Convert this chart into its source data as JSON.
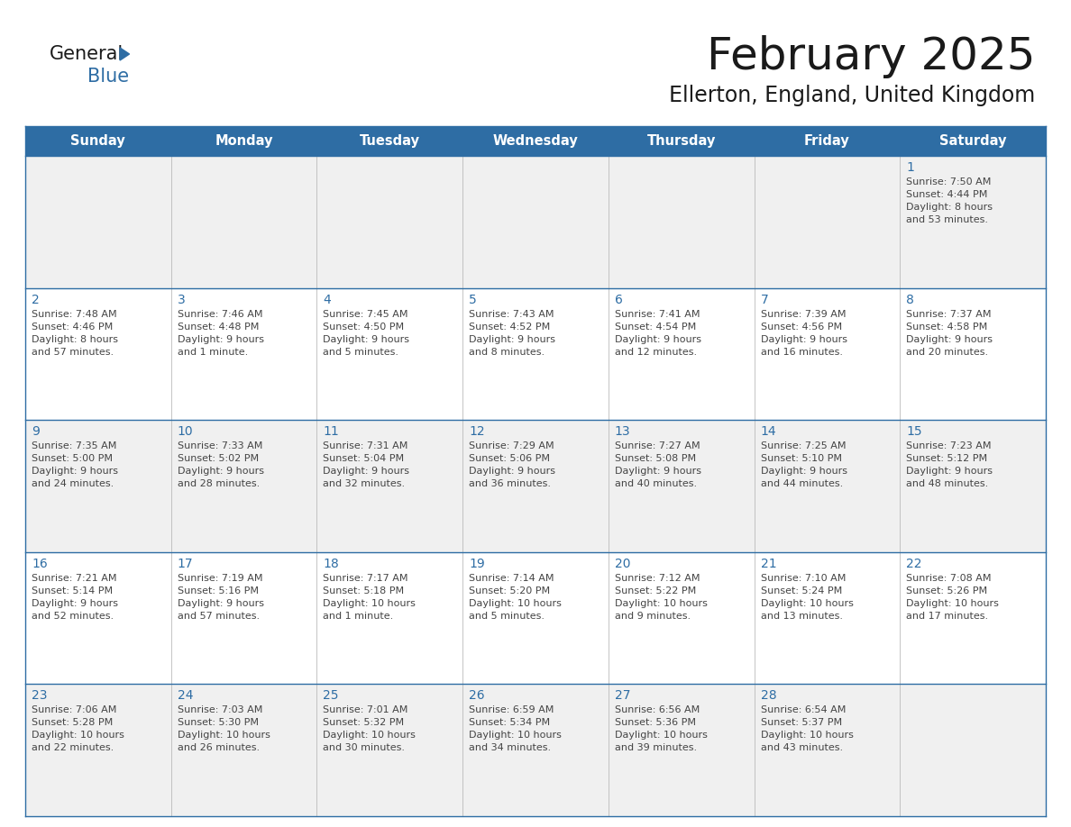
{
  "title": "February 2025",
  "subtitle": "Ellerton, England, United Kingdom",
  "header_bg": "#2E6DA4",
  "header_text_color": "#FFFFFF",
  "header_font_size": 10.5,
  "day_names": [
    "Sunday",
    "Monday",
    "Tuesday",
    "Wednesday",
    "Thursday",
    "Friday",
    "Saturday"
  ],
  "title_font_size": 36,
  "subtitle_font_size": 17,
  "bg_color": "#FFFFFF",
  "cell_bg_week1": "#F0F0F0",
  "cell_bg_week2": "#FFFFFF",
  "cell_bg_week3": "#F0F0F0",
  "cell_bg_week4": "#FFFFFF",
  "cell_bg_week5": "#F0F0F0",
  "cell_border_color": "#BBBBBB",
  "row_border_color": "#2E6DA4",
  "day_number_color": "#2E6DA4",
  "text_color": "#444444",
  "logo_general_color": "#1a1a1a",
  "logo_blue_color": "#2E6DA4",
  "logo_triangle_color": "#2E6DA4",
  "calendar_data": [
    [
      null,
      null,
      null,
      null,
      null,
      null,
      {
        "day": 1,
        "sunrise": "7:50 AM",
        "sunset": "4:44 PM",
        "daylight": "8 hours and 53 minutes."
      }
    ],
    [
      {
        "day": 2,
        "sunrise": "7:48 AM",
        "sunset": "4:46 PM",
        "daylight": "8 hours and 57 minutes."
      },
      {
        "day": 3,
        "sunrise": "7:46 AM",
        "sunset": "4:48 PM",
        "daylight": "9 hours and 1 minute."
      },
      {
        "day": 4,
        "sunrise": "7:45 AM",
        "sunset": "4:50 PM",
        "daylight": "9 hours and 5 minutes."
      },
      {
        "day": 5,
        "sunrise": "7:43 AM",
        "sunset": "4:52 PM",
        "daylight": "9 hours and 8 minutes."
      },
      {
        "day": 6,
        "sunrise": "7:41 AM",
        "sunset": "4:54 PM",
        "daylight": "9 hours and 12 minutes."
      },
      {
        "day": 7,
        "sunrise": "7:39 AM",
        "sunset": "4:56 PM",
        "daylight": "9 hours and 16 minutes."
      },
      {
        "day": 8,
        "sunrise": "7:37 AM",
        "sunset": "4:58 PM",
        "daylight": "9 hours and 20 minutes."
      }
    ],
    [
      {
        "day": 9,
        "sunrise": "7:35 AM",
        "sunset": "5:00 PM",
        "daylight": "9 hours and 24 minutes."
      },
      {
        "day": 10,
        "sunrise": "7:33 AM",
        "sunset": "5:02 PM",
        "daylight": "9 hours and 28 minutes."
      },
      {
        "day": 11,
        "sunrise": "7:31 AM",
        "sunset": "5:04 PM",
        "daylight": "9 hours and 32 minutes."
      },
      {
        "day": 12,
        "sunrise": "7:29 AM",
        "sunset": "5:06 PM",
        "daylight": "9 hours and 36 minutes."
      },
      {
        "day": 13,
        "sunrise": "7:27 AM",
        "sunset": "5:08 PM",
        "daylight": "9 hours and 40 minutes."
      },
      {
        "day": 14,
        "sunrise": "7:25 AM",
        "sunset": "5:10 PM",
        "daylight": "9 hours and 44 minutes."
      },
      {
        "day": 15,
        "sunrise": "7:23 AM",
        "sunset": "5:12 PM",
        "daylight": "9 hours and 48 minutes."
      }
    ],
    [
      {
        "day": 16,
        "sunrise": "7:21 AM",
        "sunset": "5:14 PM",
        "daylight": "9 hours and 52 minutes."
      },
      {
        "day": 17,
        "sunrise": "7:19 AM",
        "sunset": "5:16 PM",
        "daylight": "9 hours and 57 minutes."
      },
      {
        "day": 18,
        "sunrise": "7:17 AM",
        "sunset": "5:18 PM",
        "daylight": "10 hours and 1 minute."
      },
      {
        "day": 19,
        "sunrise": "7:14 AM",
        "sunset": "5:20 PM",
        "daylight": "10 hours and 5 minutes."
      },
      {
        "day": 20,
        "sunrise": "7:12 AM",
        "sunset": "5:22 PM",
        "daylight": "10 hours and 9 minutes."
      },
      {
        "day": 21,
        "sunrise": "7:10 AM",
        "sunset": "5:24 PM",
        "daylight": "10 hours and 13 minutes."
      },
      {
        "day": 22,
        "sunrise": "7:08 AM",
        "sunset": "5:26 PM",
        "daylight": "10 hours and 17 minutes."
      }
    ],
    [
      {
        "day": 23,
        "sunrise": "7:06 AM",
        "sunset": "5:28 PM",
        "daylight": "10 hours and 22 minutes."
      },
      {
        "day": 24,
        "sunrise": "7:03 AM",
        "sunset": "5:30 PM",
        "daylight": "10 hours and 26 minutes."
      },
      {
        "day": 25,
        "sunrise": "7:01 AM",
        "sunset": "5:32 PM",
        "daylight": "10 hours and 30 minutes."
      },
      {
        "day": 26,
        "sunrise": "6:59 AM",
        "sunset": "5:34 PM",
        "daylight": "10 hours and 34 minutes."
      },
      {
        "day": 27,
        "sunrise": "6:56 AM",
        "sunset": "5:36 PM",
        "daylight": "10 hours and 39 minutes."
      },
      {
        "day": 28,
        "sunrise": "6:54 AM",
        "sunset": "5:37 PM",
        "daylight": "10 hours and 43 minutes."
      },
      null
    ]
  ],
  "row_bg_colors": [
    "#F0F0F0",
    "#FFFFFF",
    "#F0F0F0",
    "#FFFFFF",
    "#F0F0F0"
  ]
}
